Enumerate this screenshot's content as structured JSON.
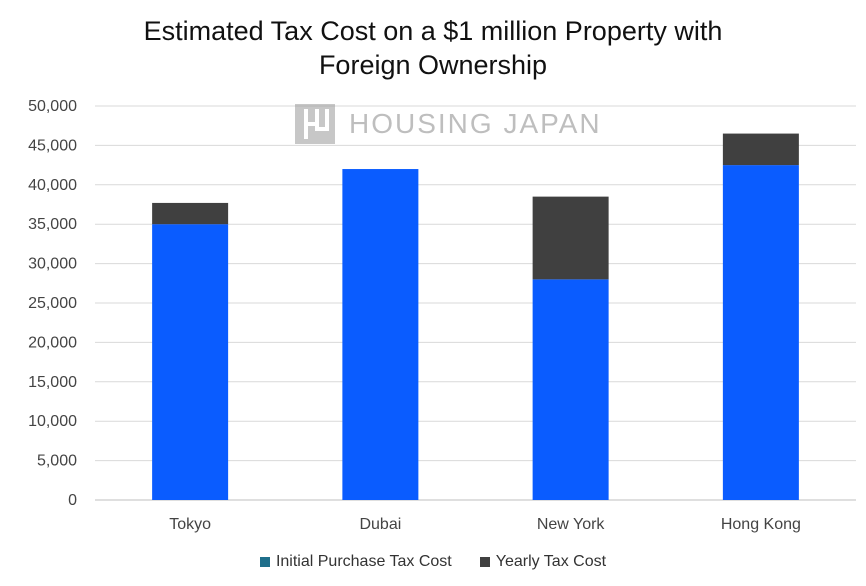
{
  "chart_data": {
    "type": "bar",
    "stacked": true,
    "title": "Estimated Tax Cost on a $1 million Property with Foreign Ownership",
    "title_lines": [
      "Estimated Tax Cost on a $1 million Property with",
      "Foreign Ownership"
    ],
    "categories": [
      "Tokyo",
      "Dubai",
      "New York",
      "Hong Kong"
    ],
    "series": [
      {
        "name": "Initial Purchase Tax Cost",
        "values": [
          35000,
          42000,
          28000,
          42500
        ],
        "color": "#0a5cff",
        "legend_color": "#1f6f8b"
      },
      {
        "name": "Yearly Tax Cost",
        "values": [
          2700,
          0,
          10500,
          4000
        ],
        "color": "#404040",
        "legend_color": "#404040"
      }
    ],
    "ylim": [
      0,
      50000
    ],
    "yticks": [
      "0",
      "5,000",
      "10,000",
      "15,000",
      "20,000",
      "25,000",
      "30,000",
      "35,000",
      "40,000",
      "45,000",
      "50,000"
    ],
    "grid": true,
    "legend": "bottom"
  },
  "watermark": {
    "text": "HOUSING JAPAN"
  }
}
